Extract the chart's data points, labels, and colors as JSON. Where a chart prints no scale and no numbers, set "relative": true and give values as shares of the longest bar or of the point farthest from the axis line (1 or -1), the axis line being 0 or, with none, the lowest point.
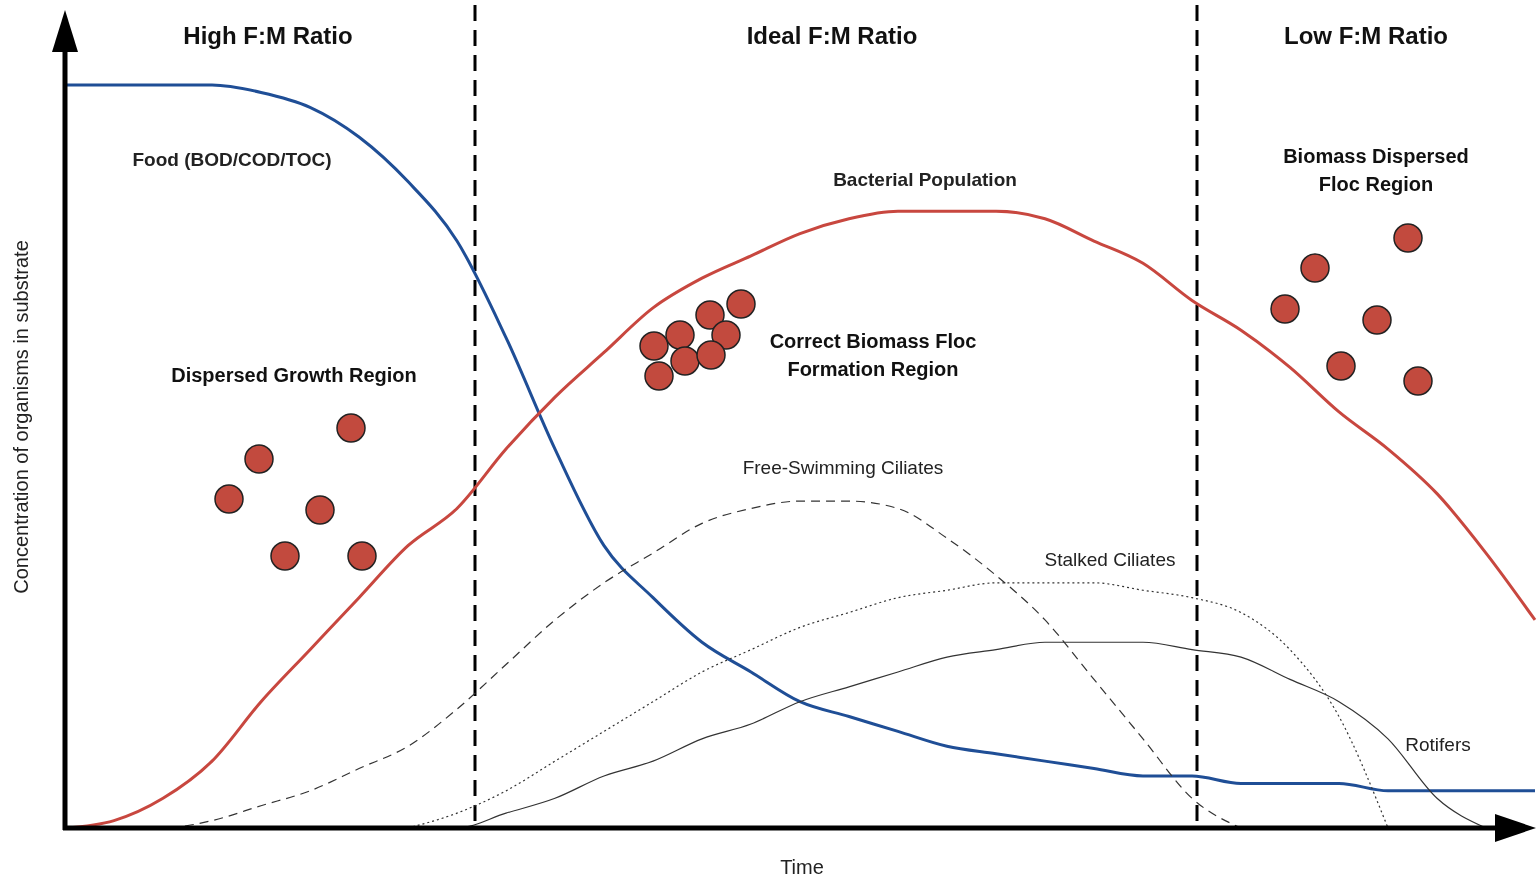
{
  "chart_data": {
    "type": "line",
    "relative": true,
    "xlabel": "Time",
    "ylabel": "Concentration of organisms in substrate",
    "categories": [
      null,
      null,
      null,
      null,
      null,
      null,
      null,
      null,
      null,
      null,
      null,
      null,
      null,
      null,
      null,
      null,
      null,
      null,
      null,
      null,
      null,
      null,
      null,
      null,
      null,
      null,
      null,
      null,
      null,
      null,
      null
    ],
    "series": [
      {
        "name": "Food (BOD/COD/TOC)",
        "color": "#1f4e96",
        "line_style": "solid",
        "values": [
          1.0,
          1.0,
          1.0,
          1.0,
          0.99,
          0.97,
          0.93,
          0.87,
          0.79,
          0.66,
          0.51,
          0.38,
          0.31,
          0.25,
          0.21,
          0.17,
          0.15,
          0.13,
          0.11,
          0.1,
          0.09,
          0.08,
          0.07,
          0.07,
          0.06,
          0.06,
          0.06,
          0.05,
          0.05,
          0.05,
          0.05
        ]
      },
      {
        "name": "Bacterial Population",
        "color": "#c8473f",
        "line_style": "solid",
        "values": [
          0,
          0.01,
          0.04,
          0.09,
          0.17,
          0.24,
          0.31,
          0.38,
          0.43,
          0.51,
          0.58,
          0.64,
          0.7,
          0.74,
          0.77,
          0.8,
          0.82,
          0.83,
          0.83,
          0.83,
          0.82,
          0.79,
          0.76,
          0.71,
          0.67,
          0.62,
          0.56,
          0.51,
          0.45,
          0.37,
          0.28
        ]
      },
      {
        "name": "Free-Swimming Ciliates",
        "color": "#333333",
        "line_style": "dashed",
        "values": [
          0,
          0,
          0,
          0.01,
          0.03,
          0.05,
          0.08,
          0.11,
          0.16,
          0.22,
          0.28,
          0.33,
          0.37,
          0.41,
          0.43,
          0.44,
          0.44,
          0.43,
          0.39,
          0.34,
          0.28,
          0.2,
          0.12,
          0.04,
          0,
          null,
          null,
          null,
          null,
          null,
          null
        ]
      },
      {
        "name": "Stalked Ciliates",
        "color": "#333333",
        "line_style": "dotted",
        "values": [
          null,
          null,
          null,
          null,
          null,
          null,
          null,
          0,
          0.02,
          0.05,
          0.09,
          0.13,
          0.17,
          0.21,
          0.24,
          0.27,
          0.29,
          0.31,
          0.32,
          0.33,
          0.33,
          0.33,
          0.32,
          0.31,
          0.29,
          0.24,
          0.15,
          0,
          null,
          null,
          null
        ]
      },
      {
        "name": "Rotifers",
        "color": "#333333",
        "line_style": "solid",
        "values": [
          null,
          null,
          null,
          null,
          null,
          null,
          null,
          0,
          0,
          0.02,
          0.04,
          0.07,
          0.09,
          0.12,
          0.14,
          0.17,
          0.19,
          0.21,
          0.23,
          0.24,
          0.25,
          0.25,
          0.25,
          0.24,
          0.23,
          0.2,
          0.17,
          0.12,
          0.04,
          0,
          null
        ]
      }
    ],
    "annotations": [
      "High F:M Ratio",
      "Ideal F:M Ratio",
      "Low F:M Ratio",
      "Dispersed Growth Region",
      "Correct Biomass Floc\nFormation Region",
      "Biomass Dispersed\nFloc Region"
    ]
  }
}
